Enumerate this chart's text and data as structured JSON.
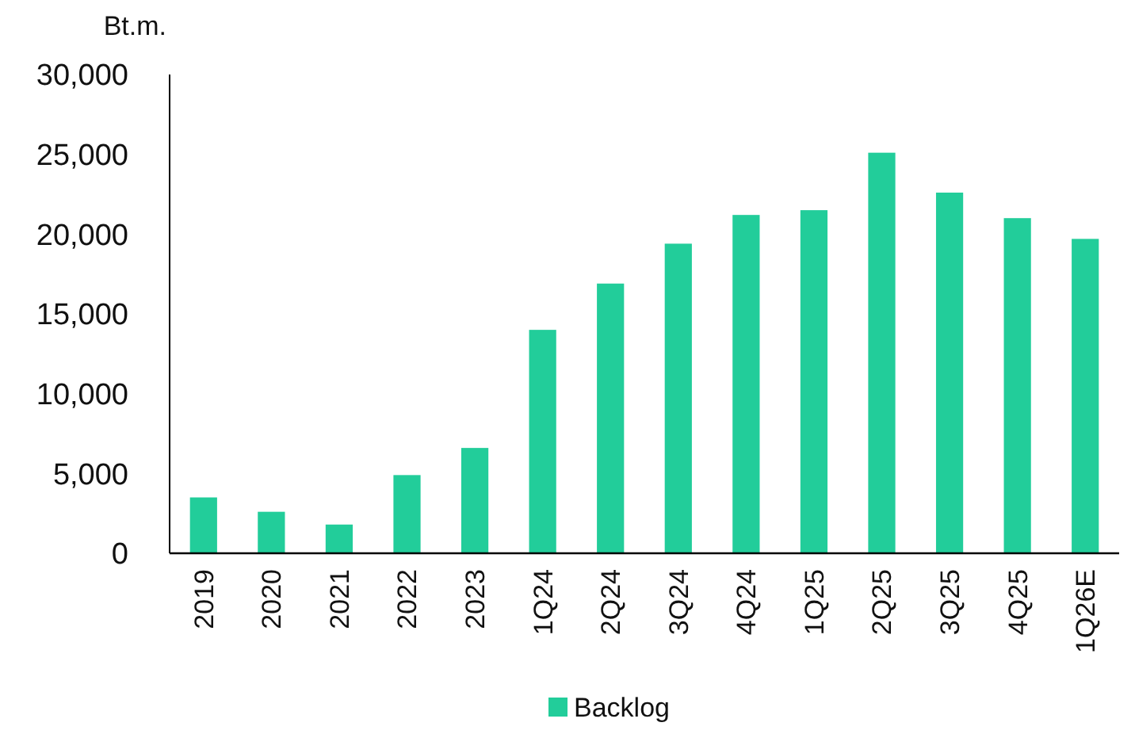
{
  "chart_data": {
    "type": "bar",
    "ylabel": "Bt.m.",
    "categories": [
      "2019",
      "2020",
      "2021",
      "2022",
      "2023",
      "1Q24",
      "2Q24",
      "3Q24",
      "4Q24",
      "1Q25",
      "2Q25",
      "3Q25",
      "4Q25",
      "1Q26E"
    ],
    "series": [
      {
        "name": "Backlog",
        "color": "#22cd9a",
        "values": [
          3500,
          2600,
          1800,
          4900,
          6600,
          14000,
          16900,
          19400,
          21200,
          21500,
          25100,
          22600,
          21000,
          19700
        ]
      }
    ],
    "ylim": [
      0,
      30000
    ],
    "yticks": [
      {
        "value": 0,
        "label": "0"
      },
      {
        "value": 5000,
        "label": "5,000"
      },
      {
        "value": 10000,
        "label": "10,000"
      },
      {
        "value": 15000,
        "label": "15,000"
      },
      {
        "value": 20000,
        "label": "20,000"
      },
      {
        "value": 25000,
        "label": "25,000"
      },
      {
        "value": 30000,
        "label": "30,000"
      }
    ],
    "grid": false,
    "legend": "bottom"
  }
}
